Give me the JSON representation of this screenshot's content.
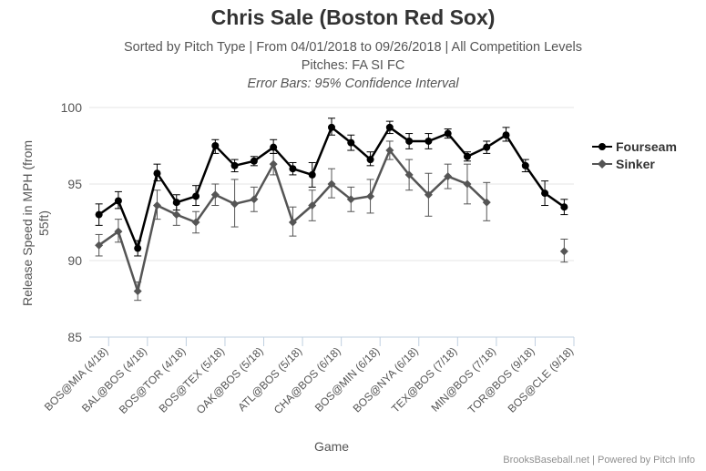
{
  "header": {
    "title": "Chris Sale (Boston Red Sox)",
    "subtitle_line1": "Sorted by Pitch Type | From 04/01/2018 to 09/26/2018 | All Competition Levels",
    "subtitle_line2": "Pitches: FA SI FC",
    "subtitle_line3": "Error Bars: 95% Confidence Interval"
  },
  "credits": "BrooksBaseball.net | Powered by Pitch Info",
  "chart_data": {
    "type": "line",
    "xlabel": "Game",
    "ylabel": "Release Speed in MPH (from 55ft)",
    "ylim": [
      85,
      100
    ],
    "yticks": [
      85,
      90,
      95,
      100
    ],
    "grid": true,
    "legend_position": "right",
    "tick_labels": [
      "BOS@MIA (4/18)",
      "BAL@BOS (4/18)",
      "BOS@TOR (4/18)",
      "BOS@TEX (5/18)",
      "OAK@BOS (5/18)",
      "ATL@BOS (5/18)",
      "CHA@BOS (6/18)",
      "BOS@MIN (6/18)",
      "BOS@NYA (6/18)",
      "TEX@BOS (7/18)",
      "MIN@BOS (7/18)",
      "TOR@BOS (9/18)",
      "BOS@CLE (9/18)"
    ],
    "games_count": 25,
    "series": [
      {
        "name": "Fourseam",
        "color": "#000000",
        "marker": "circle",
        "values": [
          93.0,
          93.9,
          90.8,
          95.7,
          93.8,
          94.2,
          97.5,
          96.2,
          96.5,
          97.4,
          96.0,
          95.6,
          98.7,
          97.7,
          96.6,
          98.7,
          97.8,
          97.8,
          98.3,
          96.8,
          97.4,
          98.2,
          96.2,
          94.4,
          93.5
        ],
        "lower": [
          92.3,
          93.4,
          90.3,
          95.2,
          93.3,
          93.6,
          97.0,
          95.8,
          96.2,
          97.0,
          95.6,
          94.8,
          98.2,
          97.2,
          96.2,
          98.3,
          97.3,
          97.3,
          98.0,
          96.5,
          97.0,
          97.8,
          95.8,
          93.6,
          93.0
        ],
        "upper": [
          93.7,
          94.5,
          91.3,
          96.3,
          94.3,
          94.9,
          97.9,
          96.6,
          96.8,
          97.9,
          96.4,
          96.4,
          99.3,
          98.2,
          97.1,
          99.1,
          98.3,
          98.3,
          98.6,
          97.1,
          97.8,
          98.7,
          96.6,
          95.2,
          94.0
        ]
      },
      {
        "name": "Sinker",
        "color": "#555555",
        "marker": "diamond",
        "values": [
          91.0,
          91.9,
          88.0,
          93.6,
          93.0,
          92.5,
          94.3,
          93.7,
          94.0,
          96.3,
          92.5,
          93.6,
          95.0,
          94.0,
          94.2,
          97.2,
          95.6,
          94.3,
          95.5,
          95.0,
          93.8,
          null,
          null,
          null,
          90.6
        ],
        "lower": [
          90.3,
          91.2,
          87.4,
          92.7,
          92.3,
          91.8,
          93.6,
          92.2,
          93.2,
          95.6,
          91.6,
          92.6,
          94.1,
          93.2,
          93.1,
          96.6,
          94.6,
          92.9,
          94.7,
          93.7,
          92.6,
          null,
          null,
          null,
          89.9
        ],
        "upper": [
          91.7,
          92.7,
          88.6,
          94.6,
          93.7,
          93.2,
          95.0,
          95.3,
          94.8,
          97.0,
          93.5,
          94.6,
          96.0,
          94.8,
          95.3,
          97.8,
          96.6,
          95.7,
          96.3,
          96.3,
          95.1,
          null,
          null,
          null,
          91.4
        ]
      }
    ]
  }
}
